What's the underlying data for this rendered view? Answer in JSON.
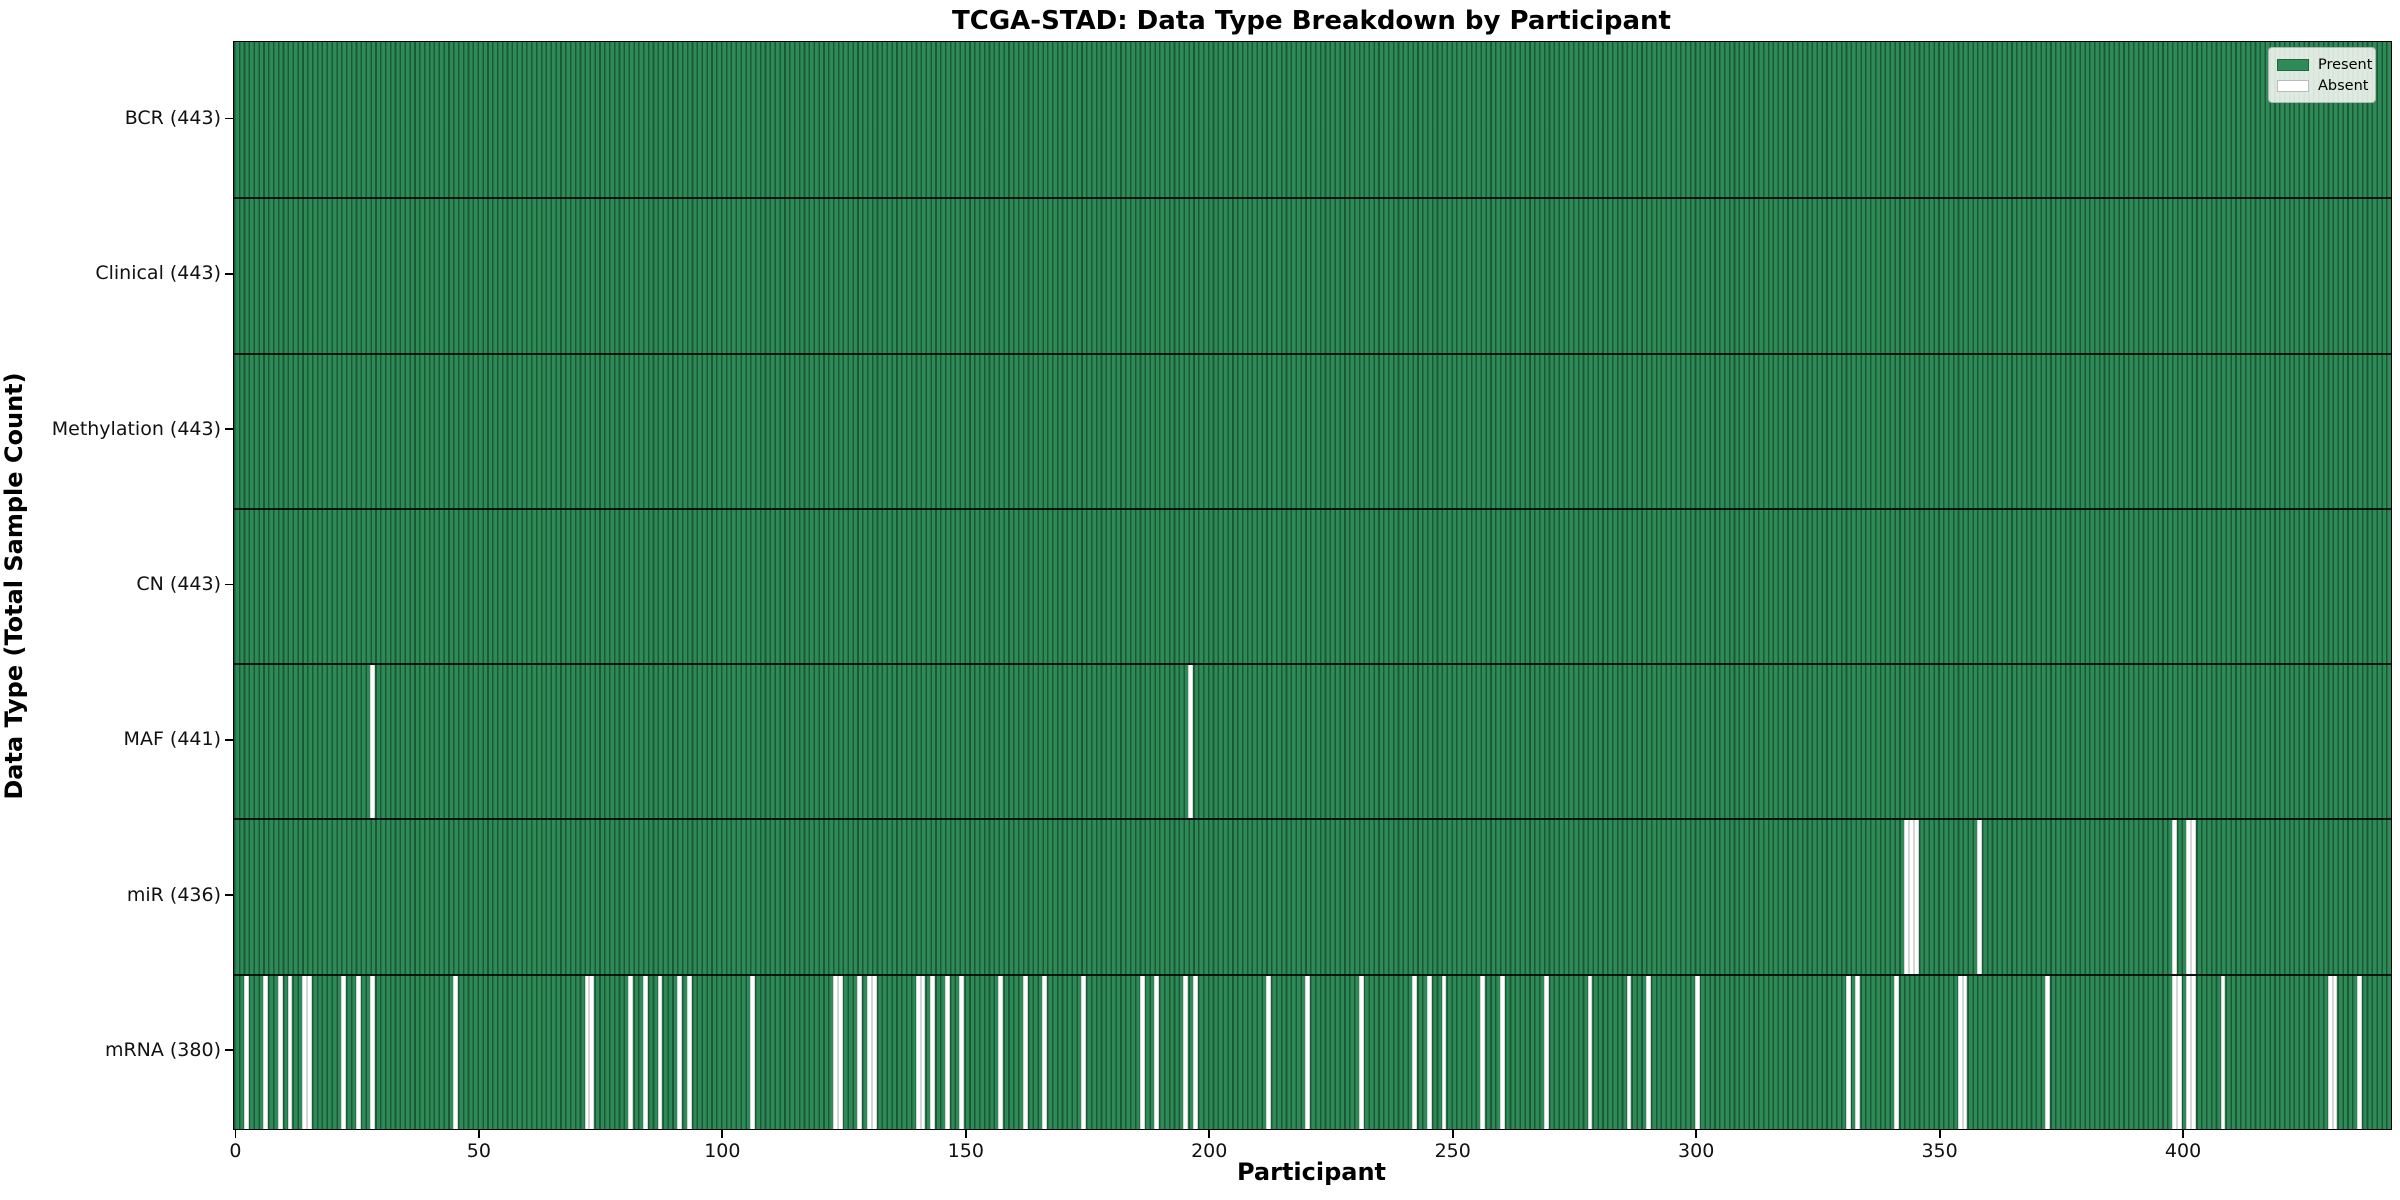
{
  "figure": {
    "title": "TCGA-STAD: Data Type Breakdown by Participant",
    "x_axis_label": "Participant",
    "y_axis_label": "Data Type (Total Sample Count)"
  },
  "legend": {
    "present_label": "Present",
    "absent_label": "Absent",
    "position": "upper-right"
  },
  "chart_data": {
    "type": "heatmap",
    "title": "TCGA-STAD: Data Type Breakdown by Participant",
    "xlabel": "Participant",
    "ylabel": "Data Type (Total Sample Count)",
    "n_participants": 443,
    "x_range": [
      0,
      443
    ],
    "x_ticks": [
      0,
      50,
      100,
      150,
      200,
      250,
      300,
      350,
      400
    ],
    "grid": false,
    "legend_entries": [
      "Present",
      "Absent"
    ],
    "colors": {
      "present": "#2e8b57",
      "absent": "#ffffff",
      "bar_edge": "#1c5636"
    },
    "rows": [
      {
        "key": "bcr",
        "name": "BCR",
        "total_samples": 443,
        "tick_label": "BCR (443)",
        "absent_participants": []
      },
      {
        "key": "clinical",
        "name": "Clinical",
        "total_samples": 443,
        "tick_label": "Clinical (443)",
        "absent_participants": []
      },
      {
        "key": "methylation",
        "name": "Methylation",
        "total_samples": 443,
        "tick_label": "Methylation (443)",
        "absent_participants": []
      },
      {
        "key": "cn",
        "name": "CN",
        "total_samples": 443,
        "tick_label": "CN (443)",
        "absent_participants": []
      },
      {
        "key": "maf",
        "name": "MAF",
        "total_samples": 441,
        "tick_label": "MAF (441)",
        "absent_participants": [
          28,
          196
        ]
      },
      {
        "key": "mir",
        "name": "miR",
        "total_samples": 436,
        "tick_label": "miR (436)",
        "absent_participants": [
          343,
          344,
          345,
          358,
          398,
          401,
          402
        ]
      },
      {
        "key": "mrna",
        "name": "mRNA",
        "total_samples": 380,
        "tick_label": "mRNA (380)",
        "absent_participants": [
          2,
          6,
          9,
          11,
          14,
          15,
          22,
          25,
          28,
          45,
          72,
          73,
          81,
          84,
          87,
          91,
          93,
          106,
          123,
          124,
          128,
          130,
          131,
          140,
          141,
          143,
          146,
          149,
          157,
          162,
          166,
          174,
          186,
          189,
          195,
          197,
          212,
          220,
          231,
          242,
          245,
          248,
          256,
          260,
          269,
          278,
          286,
          290,
          300,
          331,
          333,
          341,
          354,
          355,
          372,
          398,
          399,
          401,
          402,
          408,
          430,
          431,
          436
        ]
      }
    ]
  }
}
